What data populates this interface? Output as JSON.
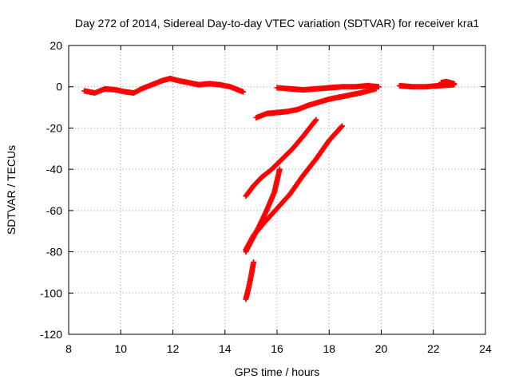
{
  "chart_data": {
    "type": "scatter",
    "title": "Day 272 of 2014, Sidereal Day-to-day VTEC variation (SDTVAR) for receiver kra1",
    "xlabel": "GPS time / hours",
    "ylabel": "SDTVAR / TECUs",
    "xlim": [
      8,
      24
    ],
    "ylim": [
      -120,
      20
    ],
    "xticks": [
      "8",
      "10",
      "12",
      "14",
      "16",
      "18",
      "20",
      "22",
      "24"
    ],
    "yticks": [
      "20",
      "0",
      "-20",
      "-40",
      "-60",
      "-80",
      "-100",
      "-120"
    ],
    "grid": true,
    "marker": "+",
    "color": "#ff0000",
    "series": [
      {
        "name": "arc-1",
        "x": [
          8.6,
          9.0,
          9.4,
          9.8,
          10.2,
          10.5,
          10.8,
          11.2,
          11.6,
          11.9,
          12.2,
          12.6,
          13.0,
          13.4,
          13.8,
          14.2,
          14.5,
          14.7
        ],
        "y": [
          -2,
          -3,
          -1,
          -1.5,
          -2.5,
          -3,
          -1,
          1,
          3,
          4,
          3,
          2,
          1,
          1.5,
          1,
          0,
          -1.5,
          -2.5
        ]
      },
      {
        "name": "arc-2",
        "x": [
          16.0,
          16.5,
          17.0,
          17.5,
          18.0,
          18.5,
          19.0,
          19.5,
          19.9
        ],
        "y": [
          -0.5,
          -1,
          -1.5,
          -1,
          -0.5,
          0,
          0,
          0.5,
          0
        ]
      },
      {
        "name": "arc-3",
        "x": [
          20.7,
          21.2,
          21.7,
          22.2,
          22.8
        ],
        "y": [
          0.5,
          0,
          0,
          0.5,
          1
        ]
      },
      {
        "name": "arc-4",
        "x": [
          22.3,
          22.5,
          22.8
        ],
        "y": [
          2,
          2.5,
          1.5
        ]
      },
      {
        "name": "arc-5",
        "x": [
          15.2,
          15.6,
          16.0,
          16.4,
          16.8,
          17.2,
          17.6,
          18.0,
          18.4,
          18.8,
          19.2,
          19.8
        ],
        "y": [
          -15,
          -13,
          -12.5,
          -12,
          -11,
          -9,
          -7.5,
          -6,
          -5,
          -4,
          -3,
          -1
        ]
      },
      {
        "name": "arc-6",
        "x": [
          14.8,
          15.1,
          15.4,
          15.8,
          16.2,
          16.6,
          17.0,
          17.5
        ],
        "y": [
          -53,
          -48,
          -44,
          -40,
          -35,
          -30,
          -24,
          -16
        ]
      },
      {
        "name": "arc-7",
        "x": [
          14.8,
          15.0,
          15.3,
          15.6,
          15.9,
          16.1
        ],
        "y": [
          -80,
          -75,
          -68,
          -60,
          -51,
          -40
        ]
      },
      {
        "name": "arc-8",
        "x": [
          14.8,
          15.1,
          15.5,
          16.0,
          16.5,
          17.0,
          17.5,
          18.0,
          18.5
        ],
        "y": [
          -79,
          -72,
          -66,
          -59,
          -52,
          -43,
          -35,
          -26,
          -19
        ]
      },
      {
        "name": "arc-9",
        "x": [
          14.8,
          14.9,
          15.0,
          15.1
        ],
        "y": [
          -103,
          -98,
          -92,
          -85
        ]
      }
    ]
  }
}
